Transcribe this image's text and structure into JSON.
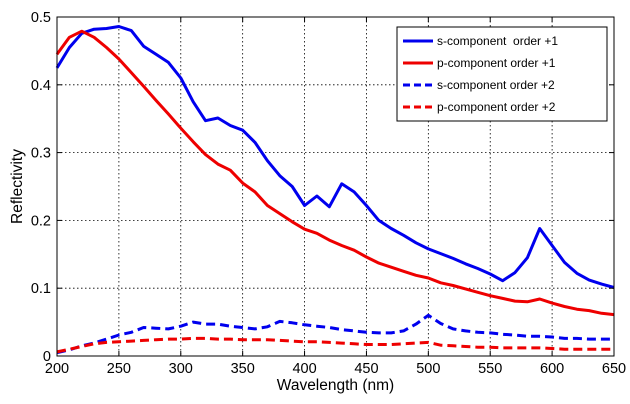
{
  "chart_data": {
    "type": "line",
    "xlabel": "Wavelength (nm)",
    "ylabel": "Reflectivity",
    "xlim": [
      200,
      650
    ],
    "ylim": [
      0,
      0.5
    ],
    "xticks": [
      "200",
      "250",
      "300",
      "350",
      "400",
      "450",
      "500",
      "550",
      "600",
      "650"
    ],
    "yticks": [
      "0",
      "0.1",
      "0.2",
      "0.3",
      "0.4",
      "0.5"
    ],
    "grid": true,
    "legend_position": "top-right",
    "series": [
      {
        "name": "s-component  order +1",
        "color": "#0000ee",
        "dash": "solid",
        "x": [
          200,
          210,
          220,
          230,
          240,
          250,
          260,
          270,
          280,
          290,
          300,
          310,
          320,
          330,
          340,
          350,
          360,
          370,
          380,
          390,
          400,
          410,
          420,
          430,
          440,
          450,
          460,
          470,
          480,
          490,
          500,
          510,
          520,
          530,
          540,
          550,
          560,
          570,
          580,
          590,
          600,
          610,
          620,
          630,
          640,
          650
        ],
        "y": [
          0.425,
          0.455,
          0.476,
          0.482,
          0.483,
          0.486,
          0.48,
          0.457,
          0.445,
          0.433,
          0.41,
          0.375,
          0.347,
          0.351,
          0.34,
          0.333,
          0.315,
          0.288,
          0.266,
          0.25,
          0.222,
          0.236,
          0.22,
          0.254,
          0.242,
          0.222,
          0.2,
          0.188,
          0.178,
          0.167,
          0.158,
          0.151,
          0.144,
          0.136,
          0.129,
          0.121,
          0.111,
          0.123,
          0.145,
          0.188,
          0.163,
          0.138,
          0.122,
          0.112,
          0.106,
          0.101
        ]
      },
      {
        "name": "p-component order +1",
        "color": "#ee0000",
        "dash": "solid",
        "x": [
          200,
          210,
          220,
          230,
          240,
          250,
          260,
          270,
          280,
          290,
          300,
          310,
          320,
          330,
          340,
          350,
          360,
          370,
          380,
          390,
          400,
          410,
          420,
          430,
          440,
          450,
          460,
          470,
          480,
          490,
          500,
          510,
          520,
          530,
          540,
          550,
          560,
          570,
          580,
          590,
          600,
          610,
          620,
          630,
          640,
          650
        ],
        "y": [
          0.445,
          0.47,
          0.479,
          0.47,
          0.455,
          0.438,
          0.418,
          0.398,
          0.377,
          0.357,
          0.336,
          0.316,
          0.297,
          0.283,
          0.274,
          0.255,
          0.242,
          0.222,
          0.21,
          0.198,
          0.187,
          0.181,
          0.171,
          0.163,
          0.156,
          0.146,
          0.137,
          0.131,
          0.125,
          0.119,
          0.115,
          0.108,
          0.104,
          0.099,
          0.094,
          0.089,
          0.085,
          0.081,
          0.08,
          0.084,
          0.078,
          0.073,
          0.069,
          0.067,
          0.063,
          0.061
        ]
      },
      {
        "name": "s-component order +2",
        "color": "#0000ee",
        "dash": "dashed",
        "x": [
          200,
          210,
          220,
          230,
          240,
          250,
          260,
          270,
          280,
          290,
          300,
          310,
          320,
          330,
          340,
          350,
          360,
          370,
          380,
          390,
          400,
          410,
          420,
          430,
          440,
          450,
          460,
          470,
          480,
          490,
          500,
          510,
          520,
          530,
          540,
          550,
          560,
          570,
          580,
          590,
          600,
          610,
          620,
          630,
          640,
          650
        ],
        "y": [
          0.005,
          0.009,
          0.015,
          0.019,
          0.025,
          0.031,
          0.035,
          0.042,
          0.041,
          0.04,
          0.044,
          0.05,
          0.047,
          0.047,
          0.044,
          0.042,
          0.04,
          0.043,
          0.051,
          0.049,
          0.046,
          0.044,
          0.042,
          0.039,
          0.037,
          0.035,
          0.034,
          0.034,
          0.037,
          0.047,
          0.06,
          0.048,
          0.04,
          0.037,
          0.035,
          0.034,
          0.032,
          0.031,
          0.029,
          0.029,
          0.028,
          0.026,
          0.026,
          0.025,
          0.025,
          0.025
        ]
      },
      {
        "name": "p-component order +2",
        "color": "#ee0000",
        "dash": "dashed",
        "x": [
          200,
          210,
          220,
          230,
          240,
          250,
          260,
          270,
          280,
          290,
          300,
          310,
          320,
          330,
          340,
          350,
          360,
          370,
          380,
          390,
          400,
          410,
          420,
          430,
          440,
          450,
          460,
          470,
          480,
          490,
          500,
          510,
          520,
          530,
          540,
          550,
          560,
          570,
          580,
          590,
          600,
          610,
          620,
          630,
          640,
          650
        ],
        "y": [
          0.006,
          0.01,
          0.014,
          0.018,
          0.02,
          0.021,
          0.022,
          0.023,
          0.024,
          0.025,
          0.025,
          0.026,
          0.026,
          0.025,
          0.025,
          0.024,
          0.024,
          0.024,
          0.023,
          0.022,
          0.021,
          0.021,
          0.02,
          0.019,
          0.018,
          0.017,
          0.017,
          0.017,
          0.018,
          0.019,
          0.02,
          0.016,
          0.015,
          0.014,
          0.013,
          0.013,
          0.012,
          0.012,
          0.012,
          0.012,
          0.011,
          0.01,
          0.01,
          0.01,
          0.01,
          0.01
        ]
      }
    ]
  }
}
